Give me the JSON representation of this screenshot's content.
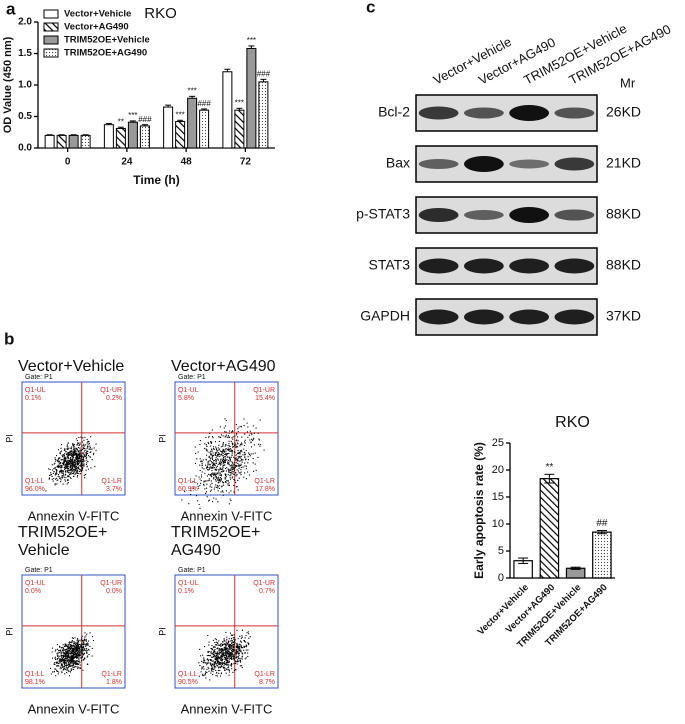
{
  "panel_labels": [
    "a",
    "b",
    "c"
  ],
  "chart_data": [
    {
      "type": "bar",
      "title": "RKO",
      "x_label": "Time (h)",
      "y_label": "OD Value (450 nm)",
      "categories": [
        "0",
        "24",
        "48",
        "72"
      ],
      "series": [
        {
          "name": "Vector+Vehicle",
          "color": "#ffffff",
          "pattern": "solid",
          "values": [
            0.2,
            0.37,
            0.65,
            1.21
          ],
          "errors": [
            0.01,
            0.02,
            0.03,
            0.04
          ],
          "annotations": [
            null,
            null,
            null,
            null
          ]
        },
        {
          "name": "Vector+AG490",
          "color": "#ffffff",
          "pattern": "hatch",
          "values": [
            0.2,
            0.31,
            0.42,
            0.6
          ],
          "errors": [
            0.01,
            0.02,
            0.02,
            0.03
          ],
          "annotations": [
            null,
            "**",
            "***",
            "***"
          ]
        },
        {
          "name": "TRIM52OE+Vehicle",
          "color": "#999999",
          "pattern": "solid",
          "values": [
            0.2,
            0.41,
            0.79,
            1.58
          ],
          "errors": [
            0.01,
            0.02,
            0.03,
            0.04
          ],
          "annotations": [
            null,
            "***",
            "***",
            "***"
          ]
        },
        {
          "name": "TRIM52OE+AG490",
          "color": "#ffffff",
          "pattern": "dots",
          "values": [
            0.2,
            0.35,
            0.6,
            1.05
          ],
          "errors": [
            0.01,
            0.02,
            0.02,
            0.04
          ],
          "annotations": [
            null,
            "###",
            "###",
            "###"
          ]
        }
      ],
      "ylim": [
        0,
        2
      ],
      "yticks": [
        {
          "value": 0,
          "label": "0.0"
        },
        {
          "value": 0.5,
          "label": "0.5"
        },
        {
          "value": 1,
          "label": "1.0"
        },
        {
          "value": 1.5,
          "label": "1.5"
        },
        {
          "value": 2,
          "label": "2.0"
        }
      ]
    },
    {
      "type": "bar",
      "title": "RKO",
      "y_label": "Early apoptosis rate (%)",
      "categories": [
        "Vector+Vehicle",
        "Vector+AG490",
        "TRIM52OE+Vehicle",
        "TRIM52OE+AG490"
      ],
      "values": [
        3.2,
        18.4,
        1.8,
        8.5
      ],
      "errors": [
        0.5,
        0.8,
        0.2,
        0.3
      ],
      "annotations": [
        null,
        "**",
        null,
        "##"
      ],
      "colors": [
        "#ffffff",
        "#ffffff",
        "#999999",
        "#ffffff"
      ],
      "patterns": [
        "solid",
        "hatch",
        "solid",
        "dots"
      ],
      "ylim": [
        0,
        25
      ],
      "yticks": [
        0,
        5,
        10,
        15,
        20,
        25
      ]
    }
  ],
  "blot": {
    "lanes": [
      "Vector+Vehicle",
      "Vector+AG490",
      "TRIM52OE+Vehicle",
      "TRIM52OE+AG490"
    ],
    "mr_header": "Mr",
    "rows": [
      {
        "protein": "Bcl-2",
        "mr": "26KD",
        "bands": [
          0.7,
          0.5,
          1.0,
          0.5
        ]
      },
      {
        "protein": "Bax",
        "mr": "21KD",
        "bands": [
          0.4,
          1.0,
          0.3,
          0.7
        ]
      },
      {
        "protein": "p-STAT3",
        "mr": "88KD",
        "bands": [
          0.8,
          0.4,
          1.0,
          0.5
        ]
      },
      {
        "protein": "STAT3",
        "mr": "88KD",
        "bands": [
          0.9,
          0.9,
          0.9,
          0.9
        ]
      },
      {
        "protein": "GAPDH",
        "mr": "37KD",
        "bands": [
          0.9,
          0.9,
          0.9,
          0.9
        ]
      }
    ]
  },
  "flow": {
    "x_label": "Annexin V-FITC",
    "y_label": "PI",
    "gate": "Gate: P1",
    "plots": [
      {
        "title": [
          "Vector+Vehicle"
        ],
        "UL": [
          "Q1-UL",
          "0.1%"
        ],
        "UR": [
          "Q1-UR",
          "0.2%"
        ],
        "LL": [
          "Q1-LL",
          "96.0%"
        ],
        "LR": [
          "Q1-LR",
          "3.7%"
        ]
      },
      {
        "title": [
          "Vector+AG490"
        ],
        "UL": [
          "Q1-UL",
          "5.8%"
        ],
        "UR": [
          "Q1-UR",
          "15.4%"
        ],
        "LL": [
          "Q1-LL",
          "60.9%"
        ],
        "LR": [
          "Q1-LR",
          "17.8%"
        ]
      },
      {
        "title": [
          "TRIM52OE+",
          "Vehicle"
        ],
        "UL": [
          "Q1-UL",
          "0.0%"
        ],
        "UR": [
          "Q1-UR",
          "0.0%"
        ],
        "LL": [
          "Q1-LL",
          "98.1%"
        ],
        "LR": [
          "Q1-LR",
          "1.8%"
        ]
      },
      {
        "title": [
          "TRIM52OE+",
          "AG490"
        ],
        "UL": [
          "Q1-UL",
          "0.1%"
        ],
        "UR": [
          "Q1-UR",
          "0.7%"
        ],
        "LL": [
          "Q1-LL",
          "90.5%"
        ],
        "LR": [
          "Q1-LR",
          "8.7%"
        ]
      }
    ]
  }
}
